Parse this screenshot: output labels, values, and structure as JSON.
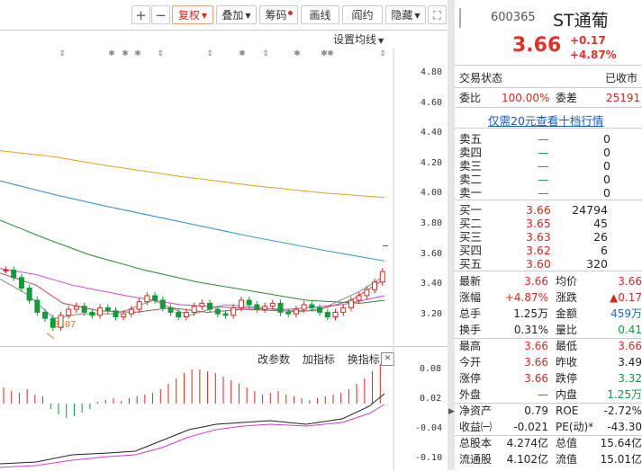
{
  "toolbar": {
    "plus": "+",
    "minus": "−",
    "fuquan": "复权",
    "diejia": "叠加",
    "chouma": "筹码",
    "huaxian": "画线",
    "hanyue": "阎约",
    "yincang": "隐藏",
    "expand_icon": "⛶"
  },
  "main_chart": {
    "settings_label": "设置均线",
    "y_ticks": [
      "4.80",
      "4.60",
      "4.40",
      "4.20",
      "4.00",
      "3.80",
      "3.60",
      "3.40",
      "3.20"
    ],
    "low_label": "3.07"
  },
  "sub_chart": {
    "buttons": [
      "改参数",
      "加指标",
      "换指标"
    ],
    "close": "✕",
    "y_ticks": [
      "0.08",
      "0.02",
      "-0.04",
      "-0.10"
    ]
  },
  "stock": {
    "code": "600365",
    "name": "ST通葡",
    "price": "3.66",
    "change": "+0.17",
    "change_pct": "+4.87%"
  },
  "status": {
    "label": "交易状态",
    "value": "已收市"
  },
  "weibi": {
    "label": "委比",
    "value": "100.00%",
    "label2": "委差",
    "value2": "25191"
  },
  "link_text": "仅需20元查看十档行情",
  "sell": [
    {
      "label": "卖五",
      "price": "—",
      "vol": "0"
    },
    {
      "label": "卖四",
      "price": "—",
      "vol": "0"
    },
    {
      "label": "卖三",
      "price": "—",
      "vol": "0"
    },
    {
      "label": "卖二",
      "price": "—",
      "vol": "0"
    },
    {
      "label": "卖一",
      "price": "—",
      "vol": "0"
    }
  ],
  "buy": [
    {
      "label": "买一",
      "price": "3.66",
      "vol": "24794"
    },
    {
      "label": "买二",
      "price": "3.65",
      "vol": "45"
    },
    {
      "label": "买三",
      "price": "3.63",
      "vol": "26"
    },
    {
      "label": "买四",
      "price": "3.62",
      "vol": "6"
    },
    {
      "label": "买五",
      "price": "3.60",
      "vol": "320"
    }
  ],
  "stats": [
    {
      "l1": "最新",
      "v1": "3.66",
      "c1": "red",
      "l2": "均价",
      "v2": "3.66",
      "c2": "red"
    },
    {
      "l1": "涨幅",
      "v1": "+4.87%",
      "c1": "red",
      "l2": "涨跌",
      "v2": "▲0.17",
      "c2": "red"
    },
    {
      "l1": "总手",
      "v1": "1.25万",
      "c1": "",
      "l2": "金额",
      "v2": "459万",
      "c2": "blue"
    },
    {
      "l1": "换手",
      "v1": "0.31%",
      "c1": "",
      "l2": "量比",
      "v2": "0.41",
      "c2": "green"
    },
    {
      "l1": "最高",
      "v1": "3.66",
      "c1": "red",
      "l2": "最低",
      "v2": "3.66",
      "c2": "red"
    },
    {
      "l1": "今开",
      "v1": "3.66",
      "c1": "red",
      "l2": "昨收",
      "v2": "3.49",
      "c2": ""
    },
    {
      "l1": "涨停",
      "v1": "3.66",
      "c1": "red",
      "l2": "跌停",
      "v2": "3.32",
      "c2": "green"
    },
    {
      "l1": "外盘",
      "v1": "—",
      "c1": "red",
      "l2": "内盘",
      "v2": "1.25万",
      "c2": "green"
    },
    {
      "l1": "净资产",
      "v1": "0.79",
      "c1": "",
      "l2": "ROE",
      "v2": "-2.72%",
      "c2": ""
    },
    {
      "l1": "收益㈠",
      "v1": "-0.021",
      "c1": "",
      "l2": "PE(动)*",
      "v2": "-43.30",
      "c2": ""
    },
    {
      "l1": "总股本",
      "v1": "4.274亿",
      "c1": "",
      "l2": "总值",
      "v2": "15.64亿",
      "c2": ""
    },
    {
      "l1": "流通股",
      "v1": "4.102亿",
      "c1": "",
      "l2": "流值",
      "v2": "15.01亿",
      "c2": ""
    }
  ],
  "colors": {
    "up": "#d02b1f",
    "down": "#129a3b",
    "ma5": "#888888",
    "ma10": "#b05050",
    "ma20": "#d040d0",
    "ma30": "#2a8a2a",
    "ma60": "#2a8ad0",
    "ma120": "#e0a020"
  }
}
